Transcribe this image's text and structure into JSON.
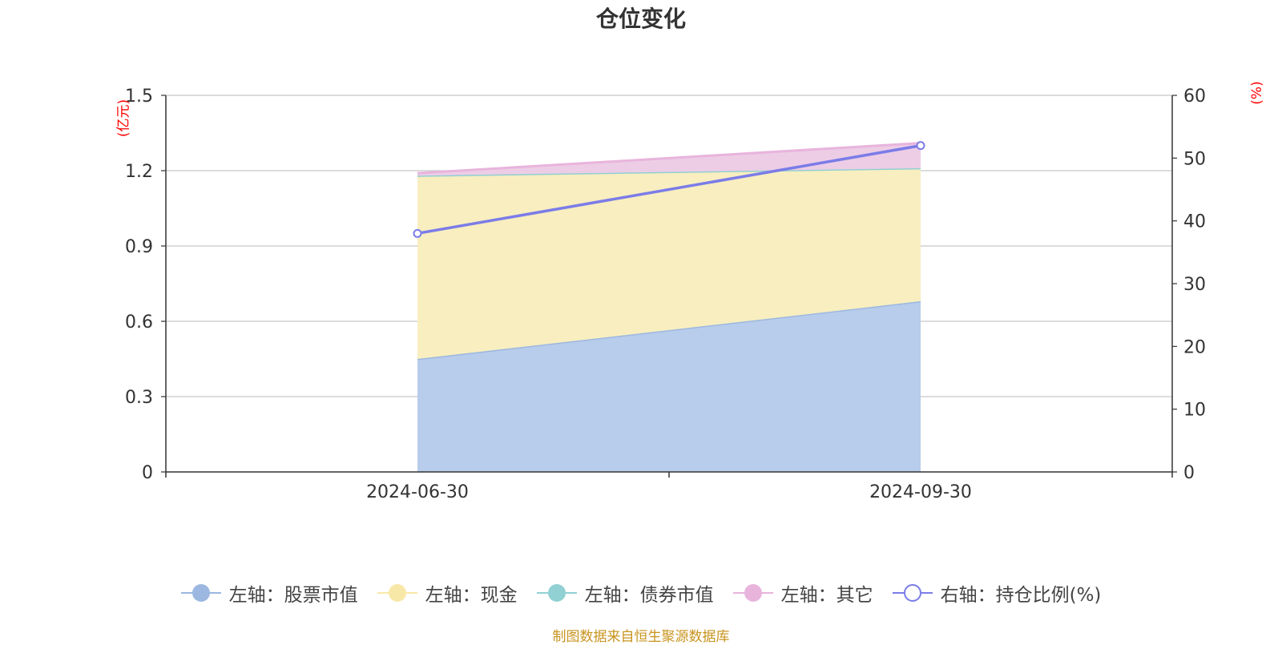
{
  "title": "仓位变化",
  "left_unit": "(亿元)",
  "right_unit": "(%)",
  "source": "制图数据来自恒生聚源数据库",
  "chart_data": {
    "type": "area",
    "categories": [
      "2024-06-30",
      "2024-09-30"
    ],
    "left_axis": {
      "ticks": [
        "0",
        "0.3",
        "0.6",
        "0.9",
        "1.2",
        "1.5"
      ],
      "range": [
        0,
        1.5
      ],
      "unit": "(亿元)"
    },
    "right_axis": {
      "ticks": [
        "0",
        "10",
        "20",
        "30",
        "40",
        "50",
        "60"
      ],
      "range": [
        0,
        60
      ],
      "unit": "(%)"
    },
    "stacked": true,
    "grid": true,
    "legend_position": "bottom",
    "series": [
      {
        "name": "左轴：股票市值",
        "axis": "left",
        "type": "area",
        "values": [
          0.45,
          0.68
        ],
        "color": "#9cb8e0",
        "fill": "#b8cceb"
      },
      {
        "name": "左轴：现金",
        "axis": "left",
        "type": "area",
        "values": [
          0.73,
          0.53
        ],
        "color": "#f8e8a8",
        "fill": "#f8eec0"
      },
      {
        "name": "左轴：债券市值",
        "axis": "left",
        "type": "area",
        "values": [
          0,
          0
        ],
        "color": "#91d0d3",
        "fill": "#bfe4e6"
      },
      {
        "name": "左轴：其它",
        "axis": "left",
        "type": "area",
        "values": [
          0.01,
          0.1
        ],
        "color": "#e8b4dc",
        "fill": "#edcde6"
      },
      {
        "name": "右轴：持仓比例(%)",
        "axis": "right",
        "type": "line",
        "values": [
          38.0,
          52.0
        ],
        "color": "#7b7ce8"
      }
    ]
  }
}
